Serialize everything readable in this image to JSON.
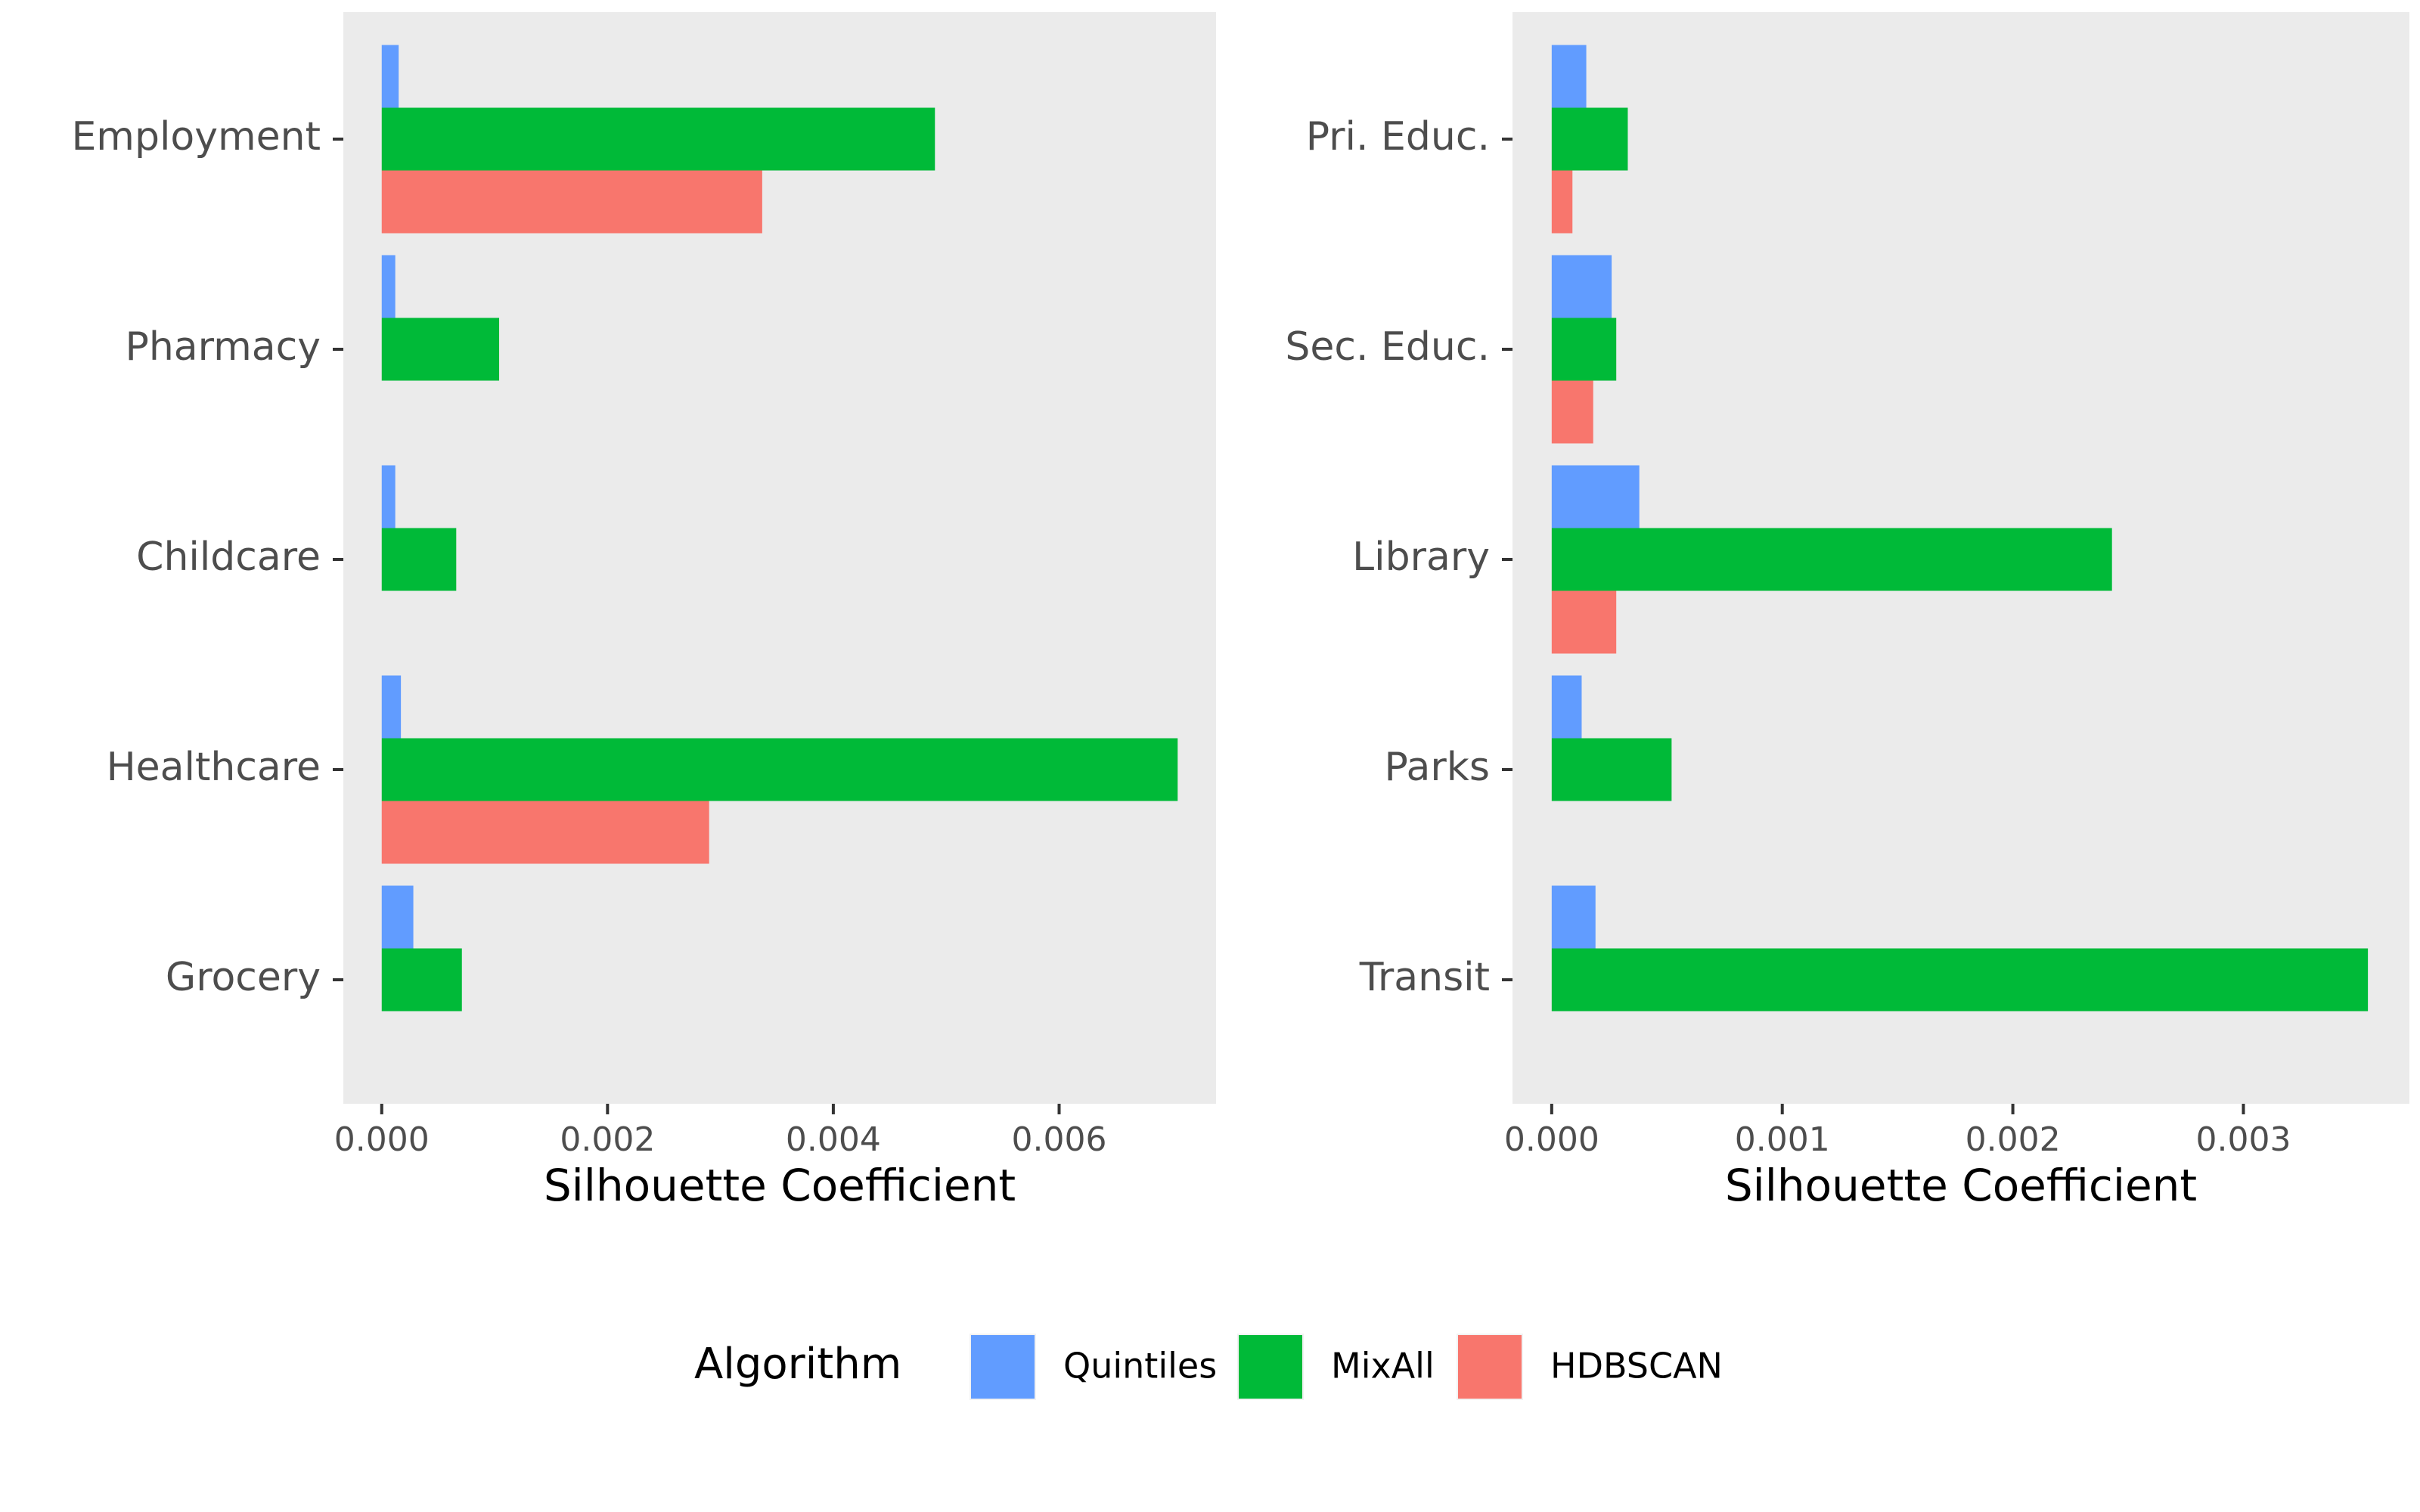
{
  "chart_data": [
    {
      "type": "bar",
      "orientation": "horizontal",
      "categories": [
        "Employment",
        "Pharmacy",
        "Childcare",
        "Healthcare",
        "Grocery"
      ],
      "series": [
        {
          "name": "Quintiles",
          "values": [
            0.00015,
            0.00012,
            0.00012,
            0.00017,
            0.00028
          ]
        },
        {
          "name": "MixAll",
          "values": [
            0.0049,
            0.00104,
            0.00066,
            0.00705,
            0.00071
          ]
        },
        {
          "name": "HDBSCAN",
          "values": [
            0.00337,
            0,
            0,
            0.0029,
            0
          ]
        }
      ],
      "xlabel": "Silhouette Coefficient",
      "xlim": [
        -0.00034,
        0.00739
      ],
      "xticks": [
        0,
        0.002,
        0.004,
        0.006
      ],
      "xtick_labels": [
        "0.000",
        "0.002",
        "0.004",
        "0.006"
      ],
      "grid": false
    },
    {
      "type": "bar",
      "orientation": "horizontal",
      "categories": [
        "Pri. Educ.",
        "Sec. Educ.",
        "Library",
        "Parks",
        "Transit"
      ],
      "series": [
        {
          "name": "Quintiles",
          "values": [
            0.00015,
            0.00026,
            0.00038,
            0.00013,
            0.00019
          ]
        },
        {
          "name": "MixAll",
          "values": [
            0.00033,
            0.00028,
            0.00243,
            0.00052,
            0.00354
          ]
        },
        {
          "name": "HDBSCAN",
          "values": [
            9e-05,
            0.00018,
            0.00028,
            0,
            0
          ]
        }
      ],
      "xlabel": "Silhouette Coefficient",
      "xlim": [
        -0.00017,
        0.00372
      ],
      "xticks": [
        0,
        0.001,
        0.002,
        0.003
      ],
      "xtick_labels": [
        "0.000",
        "0.001",
        "0.002",
        "0.003"
      ],
      "grid": false
    }
  ],
  "legend": {
    "title": "Algorithm",
    "position": "bottom",
    "items": [
      {
        "label": "Quintiles",
        "color": "#619CFF"
      },
      {
        "label": "MixAll",
        "color": "#00BA38"
      },
      {
        "label": "HDBSCAN",
        "color": "#F8766D"
      }
    ]
  },
  "colors": {
    "panel_background": "#EBEBEB",
    "tick_text": "#4D4D4D",
    "Quintiles": "#619CFF",
    "MixAll": "#00BA38",
    "HDBSCAN": "#F8766D"
  }
}
